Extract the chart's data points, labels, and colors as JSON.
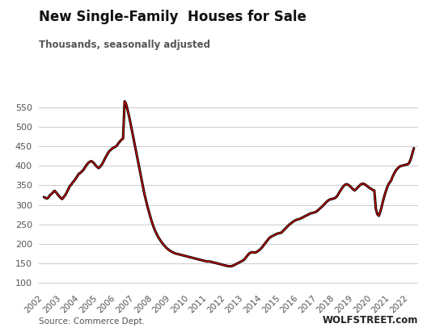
{
  "title": "New Single-Family  Houses for Sale",
  "subtitle": "Thousands, seasonally adjusted",
  "source_left": "Source: Commerce Dept.",
  "source_right": "WOLFSTREET.com",
  "background_color": "#ffffff",
  "line_color_outer": "#000000",
  "line_color_inner": "#cc0000",
  "yticks": [
    100,
    150,
    200,
    250,
    300,
    350,
    400,
    450,
    500,
    550
  ],
  "ylim": [
    85,
    595
  ],
  "xlim": [
    2001.7,
    2022.5
  ],
  "xticks": [
    2002,
    2003,
    2004,
    2005,
    2006,
    2007,
    2008,
    2009,
    2010,
    2011,
    2012,
    2013,
    2014,
    2015,
    2016,
    2017,
    2018,
    2019,
    2020,
    2021,
    2022
  ],
  "data": {
    "dates": [
      2002.0,
      2002.083,
      2002.167,
      2002.25,
      2002.333,
      2002.417,
      2002.5,
      2002.583,
      2002.667,
      2002.75,
      2002.833,
      2002.917,
      2003.0,
      2003.083,
      2003.167,
      2003.25,
      2003.333,
      2003.417,
      2003.5,
      2003.583,
      2003.667,
      2003.75,
      2003.833,
      2003.917,
      2004.0,
      2004.083,
      2004.167,
      2004.25,
      2004.333,
      2004.417,
      2004.5,
      2004.583,
      2004.667,
      2004.75,
      2004.833,
      2004.917,
      2005.0,
      2005.083,
      2005.167,
      2005.25,
      2005.333,
      2005.417,
      2005.5,
      2005.583,
      2005.667,
      2005.75,
      2005.833,
      2005.917,
      2006.0,
      2006.083,
      2006.167,
      2006.25,
      2006.333,
      2006.417,
      2006.5,
      2006.583,
      2006.667,
      2006.75,
      2006.833,
      2006.917,
      2007.0,
      2007.083,
      2007.167,
      2007.25,
      2007.333,
      2007.417,
      2007.5,
      2007.583,
      2007.667,
      2007.75,
      2007.833,
      2007.917,
      2008.0,
      2008.083,
      2008.167,
      2008.25,
      2008.333,
      2008.417,
      2008.5,
      2008.583,
      2008.667,
      2008.75,
      2008.833,
      2008.917,
      2009.0,
      2009.083,
      2009.167,
      2009.25,
      2009.333,
      2009.417,
      2009.5,
      2009.583,
      2009.667,
      2009.75,
      2009.833,
      2009.917,
      2010.0,
      2010.083,
      2010.167,
      2010.25,
      2010.333,
      2010.417,
      2010.5,
      2010.583,
      2010.667,
      2010.75,
      2010.833,
      2010.917,
      2011.0,
      2011.083,
      2011.167,
      2011.25,
      2011.333,
      2011.417,
      2011.5,
      2011.583,
      2011.667,
      2011.75,
      2011.833,
      2011.917,
      2012.0,
      2012.083,
      2012.167,
      2012.25,
      2012.333,
      2012.417,
      2012.5,
      2012.583,
      2012.667,
      2012.75,
      2012.833,
      2012.917,
      2013.0,
      2013.083,
      2013.167,
      2013.25,
      2013.333,
      2013.417,
      2013.5,
      2013.583,
      2013.667,
      2013.75,
      2013.833,
      2013.917,
      2014.0,
      2014.083,
      2014.167,
      2014.25,
      2014.333,
      2014.417,
      2014.5,
      2014.583,
      2014.667,
      2014.75,
      2014.833,
      2014.917,
      2015.0,
      2015.083,
      2015.167,
      2015.25,
      2015.333,
      2015.417,
      2015.5,
      2015.583,
      2015.667,
      2015.75,
      2015.833,
      2015.917,
      2016.0,
      2016.083,
      2016.167,
      2016.25,
      2016.333,
      2016.417,
      2016.5,
      2016.583,
      2016.667,
      2016.75,
      2016.833,
      2016.917,
      2017.0,
      2017.083,
      2017.167,
      2017.25,
      2017.333,
      2017.417,
      2017.5,
      2017.583,
      2017.667,
      2017.75,
      2017.833,
      2017.917,
      2018.0,
      2018.083,
      2018.167,
      2018.25,
      2018.333,
      2018.417,
      2018.5,
      2018.583,
      2018.667,
      2018.75,
      2018.833,
      2018.917,
      2019.0,
      2019.083,
      2019.167,
      2019.25,
      2019.333,
      2019.417,
      2019.5,
      2019.583,
      2019.667,
      2019.75,
      2019.833,
      2019.917,
      2020.0,
      2020.083,
      2020.167,
      2020.25,
      2020.333,
      2020.417,
      2020.5,
      2020.583,
      2020.667,
      2020.75,
      2020.833,
      2020.917,
      2021.0,
      2021.083,
      2021.167,
      2021.25,
      2021.333,
      2021.417,
      2021.5,
      2021.583,
      2021.667,
      2021.75,
      2021.833,
      2021.917,
      2022.0,
      2022.083,
      2022.167,
      2022.25
    ],
    "values": [
      320,
      318,
      316,
      319,
      325,
      328,
      332,
      336,
      332,
      327,
      322,
      318,
      315,
      320,
      325,
      332,
      340,
      348,
      352,
      358,
      362,
      368,
      374,
      380,
      382,
      386,
      390,
      396,
      402,
      407,
      410,
      412,
      410,
      406,
      401,
      397,
      394,
      398,
      403,
      410,
      418,
      425,
      432,
      438,
      441,
      445,
      447,
      449,
      452,
      458,
      463,
      467,
      470,
      565,
      558,
      542,
      526,
      507,
      487,
      467,
      447,
      427,
      407,
      387,
      367,
      347,
      328,
      312,
      296,
      282,
      268,
      255,
      244,
      234,
      226,
      218,
      212,
      206,
      201,
      196,
      192,
      188,
      185,
      182,
      180,
      178,
      176,
      175,
      174,
      173,
      172,
      171,
      170,
      169,
      168,
      167,
      166,
      165,
      164,
      163,
      162,
      161,
      160,
      159,
      158,
      157,
      156,
      155,
      155,
      155,
      154,
      153,
      152,
      151,
      150,
      149,
      148,
      147,
      146,
      145,
      144,
      143,
      143,
      143,
      144,
      146,
      148,
      150,
      152,
      154,
      156,
      158,
      162,
      167,
      172,
      176,
      178,
      179,
      178,
      178,
      180,
      183,
      186,
      190,
      195,
      200,
      205,
      210,
      215,
      218,
      220,
      222,
      224,
      226,
      227,
      228,
      229,
      233,
      237,
      241,
      245,
      249,
      252,
      255,
      258,
      260,
      262,
      263,
      264,
      266,
      268,
      270,
      272,
      274,
      276,
      278,
      279,
      280,
      281,
      283,
      286,
      290,
      293,
      297,
      301,
      305,
      309,
      312,
      314,
      315,
      316,
      317,
      320,
      325,
      332,
      338,
      344,
      349,
      352,
      353,
      351,
      348,
      344,
      340,
      337,
      340,
      344,
      348,
      352,
      354,
      354,
      352,
      349,
      346,
      343,
      341,
      338,
      337,
      290,
      276,
      272,
      283,
      298,
      314,
      328,
      340,
      350,
      357,
      362,
      372,
      380,
      387,
      392,
      396,
      399,
      400,
      401,
      402,
      403,
      404,
      408,
      418,
      432,
      445
    ]
  }
}
